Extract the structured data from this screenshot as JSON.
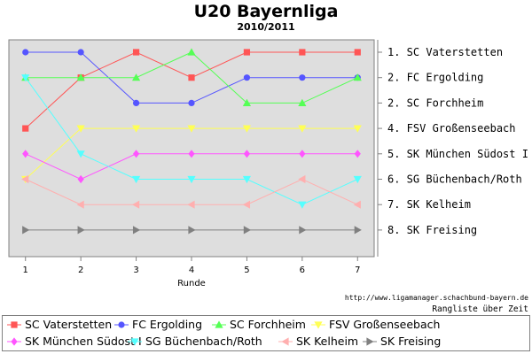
{
  "title": "U20 Bayernliga",
  "subtitle": "2010/2011",
  "credit_url": "http://www.ligamanager.schachbund-bayern.de",
  "credit_caption": "Rangliste über Zeit",
  "chart_data": {
    "type": "line",
    "title": "U20 Bayernliga",
    "subtitle": "2010/2011",
    "xlabel": "Runde",
    "ylabel": "",
    "x": [
      1,
      2,
      3,
      4,
      5,
      6,
      7
    ],
    "ylim": [
      0,
      9
    ],
    "y_inverted": true,
    "grid": false,
    "background": "#dedede",
    "legend_position": "bottom",
    "right_axis_labels": [
      "1. SC Vaterstetten",
      "2. FC Ergolding",
      "2. SC Forchheim",
      "4. FSV Großenseebach",
      "5. SK München Südost I",
      "6. SG Büchenbach/Roth",
      "7. SK Kelheim",
      "8. SK Freising"
    ],
    "series": [
      {
        "name": "SC Vaterstetten",
        "color": "#ff5555",
        "marker": "square",
        "values": [
          4,
          2,
          1,
          2,
          1,
          1,
          1
        ]
      },
      {
        "name": "FC Ergolding",
        "color": "#5555ff",
        "marker": "circle",
        "values": [
          1,
          1,
          3,
          3,
          2,
          2,
          2
        ]
      },
      {
        "name": "SC Forchheim",
        "color": "#55ff55",
        "marker": "triangle-up",
        "values": [
          2,
          2,
          2,
          1,
          3,
          3,
          2
        ]
      },
      {
        "name": "FSV Großenseebach",
        "color": "#ffff55",
        "marker": "triangle-down",
        "values": [
          6,
          4,
          4,
          4,
          4,
          4,
          4
        ]
      },
      {
        "name": "SK München Südost I",
        "color": "#ff55ff",
        "marker": "diamond",
        "values": [
          5,
          6,
          5,
          5,
          5,
          5,
          5
        ]
      },
      {
        "name": "SG Büchenbach/Roth",
        "color": "#55ffff",
        "marker": "triangle-down",
        "values": [
          2,
          5,
          6,
          6,
          6,
          7,
          6
        ]
      },
      {
        "name": "SK Kelheim",
        "color": "#ffafaf",
        "marker": "triangle-left",
        "values": [
          6,
          7,
          7,
          7,
          7,
          6,
          7
        ]
      },
      {
        "name": "SK Freising",
        "color": "#808080",
        "marker": "triangle-right",
        "values": [
          8,
          8,
          8,
          8,
          8,
          8,
          8
        ]
      }
    ]
  }
}
